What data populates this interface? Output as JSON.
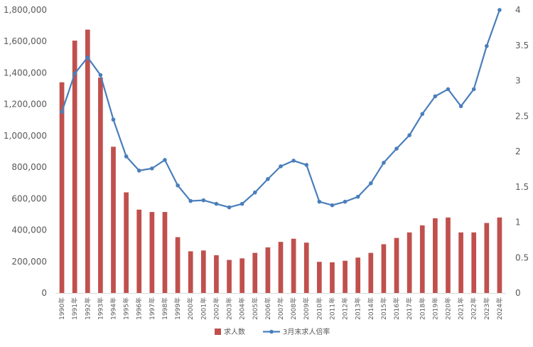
{
  "chart_data": {
    "type": "bar",
    "categories": [
      "1990年",
      "1991年",
      "1992年",
      "1993年",
      "1994年",
      "1995年",
      "1996年",
      "1997年",
      "1998年",
      "1999年",
      "2000年",
      "2001年",
      "2002年",
      "2003年",
      "2004年",
      "2005年",
      "2006年",
      "2007年",
      "2008年",
      "2009年",
      "2010年",
      "2011年",
      "2012年",
      "2013年",
      "2014年",
      "2015年",
      "2016年",
      "2017年",
      "2018年",
      "2019年",
      "2020年",
      "2021年",
      "2022年",
      "2023年",
      "2024年"
    ],
    "series": [
      {
        "name": "求人数",
        "kind": "bar",
        "axis": "left",
        "color": "#c0504d",
        "values": [
          1340000,
          1605000,
          1675000,
          1370000,
          930000,
          640000,
          530000,
          515000,
          515000,
          355000,
          265000,
          270000,
          240000,
          210000,
          220000,
          255000,
          290000,
          325000,
          345000,
          320000,
          198000,
          195000,
          205000,
          225000,
          255000,
          310000,
          350000,
          385000,
          430000,
          475000,
          480000,
          385000,
          385000,
          445000,
          480000
        ]
      },
      {
        "name": "3月末求人倍率",
        "kind": "line",
        "axis": "right",
        "color": "#4a7ebb",
        "values": [
          2.56,
          3.1,
          3.33,
          3.08,
          2.45,
          1.93,
          1.73,
          1.76,
          1.88,
          1.52,
          1.3,
          1.31,
          1.26,
          1.21,
          1.26,
          1.42,
          1.61,
          1.79,
          1.87,
          1.81,
          1.29,
          1.24,
          1.29,
          1.36,
          1.55,
          1.84,
          2.04,
          2.23,
          2.53,
          2.78,
          2.88,
          2.64,
          2.88,
          3.49,
          4.0
        ]
      }
    ],
    "ylim_left": [
      0,
      1800000
    ],
    "ylim_right": [
      0,
      4
    ],
    "left_ticks": [
      "0",
      "200,000",
      "400,000",
      "600,000",
      "800,000",
      "1,000,000",
      "1,200,000",
      "1,400,000",
      "1,600,000",
      "1,800,000"
    ],
    "right_ticks": [
      "0",
      "0.5",
      "1",
      "1.5",
      "2",
      "2.5",
      "3",
      "3.5",
      "4"
    ],
    "grid": false,
    "legend": "bottom-center"
  }
}
